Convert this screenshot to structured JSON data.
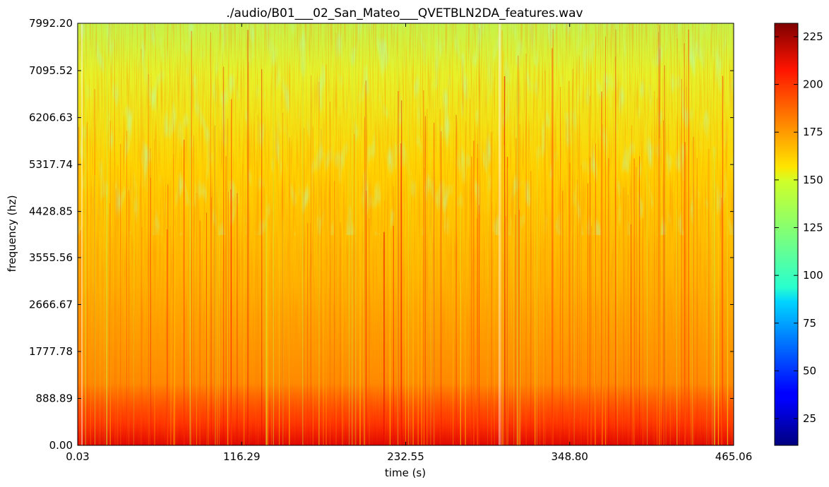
{
  "chart_data": {
    "type": "heatmap",
    "title": "./audio/B01___02_San_Mateo___QVETBLN2DA_features.wav",
    "xlabel": "time (s)",
    "ylabel": "frequency (hz)",
    "xlim": [
      0.03,
      465.06
    ],
    "ylim": [
      0.0,
      7992.2
    ],
    "x_ticks": [
      "0.03",
      "116.29",
      "232.55",
      "348.80",
      "465.06"
    ],
    "y_ticks": [
      "0.00",
      "888.89",
      "1777.78",
      "2666.67",
      "3555.56",
      "4428.85",
      "5317.74",
      "6206.63",
      "7095.52",
      "7992.20"
    ],
    "colorbar": {
      "colormap": "jet",
      "range": [
        11,
        232
      ],
      "ticks": [
        "25",
        "50",
        "75",
        "100",
        "125",
        "150",
        "175",
        "200",
        "225"
      ]
    }
  }
}
